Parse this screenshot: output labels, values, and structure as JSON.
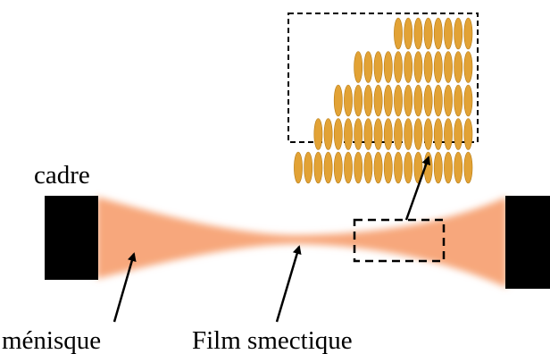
{
  "labels": {
    "frame": "cadre",
    "meniscus": "ménisque",
    "film": "Film smectique"
  },
  "colors": {
    "frame": "#000000",
    "meniscus": "#f7a77c",
    "molecule": "#e2a235",
    "molecule_stroke": "#b57a12",
    "dashed_box": "#000000"
  },
  "inset": {
    "description_icon": "smectic-layers-icon",
    "rows_molecule_counts": [
      8,
      12,
      14,
      16,
      18
    ]
  }
}
